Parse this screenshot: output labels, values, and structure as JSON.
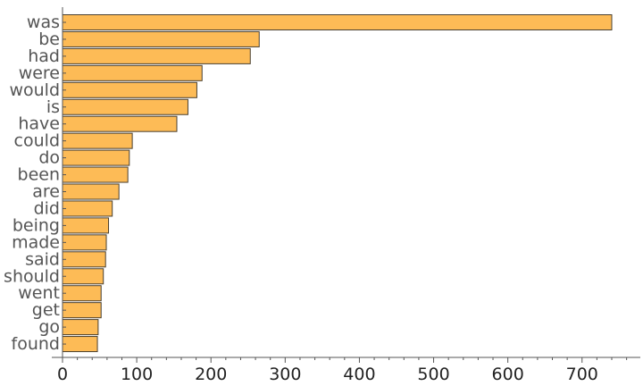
{
  "chart_data": {
    "type": "bar",
    "orientation": "horizontal",
    "categories": [
      "was",
      "be",
      "had",
      "were",
      "would",
      "is",
      "have",
      "could",
      "do",
      "been",
      "are",
      "did",
      "being",
      "made",
      "said",
      "should",
      "went",
      "get",
      "go",
      "found"
    ],
    "values": [
      740,
      265,
      253,
      188,
      181,
      169,
      154,
      94,
      90,
      88,
      76,
      67,
      62,
      59,
      58,
      55,
      52,
      52,
      48,
      47
    ],
    "xticks": [
      0,
      100,
      200,
      300,
      400,
      500,
      600,
      700
    ],
    "xlim": [
      0,
      775
    ],
    "title": "",
    "xlabel": "",
    "ylabel": "",
    "grid": false,
    "legend": "none",
    "colors": {
      "bar": "#fdbb56",
      "bar_edge": "#4a4030",
      "axis": "#555555",
      "label": "#555555"
    }
  }
}
